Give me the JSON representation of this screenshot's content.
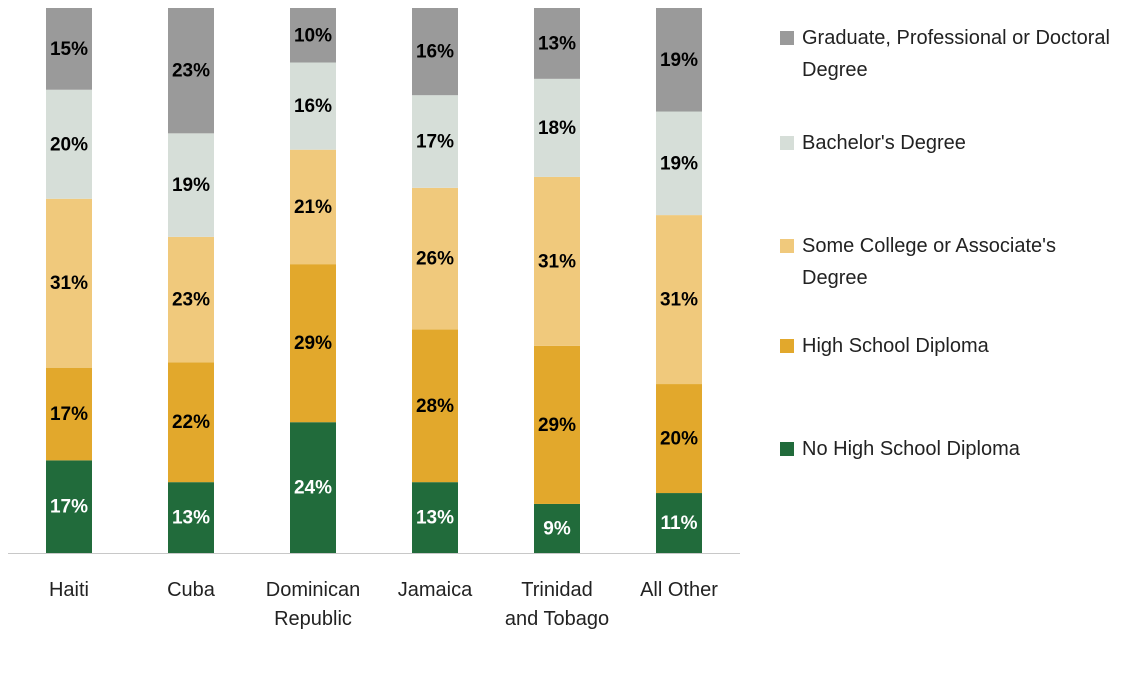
{
  "chart_data": {
    "type": "stacked_bar",
    "categories": [
      "Haiti",
      "Cuba",
      "Dominican Republic",
      "Jamaica",
      "Trinidad and Tobago",
      "All Other"
    ],
    "ylim": [
      0,
      100
    ],
    "series": [
      {
        "name": "No High School Diploma",
        "color": "#216b3b",
        "values": [
          17,
          13,
          24,
          13,
          9,
          11
        ],
        "value_labels": [
          "17%",
          "13%",
          "24%",
          "13%",
          "9%",
          "11%"
        ]
      },
      {
        "name": "High School Diploma",
        "color": "#e2a82c",
        "values": [
          17,
          22,
          29,
          28,
          29,
          20
        ],
        "value_labels": [
          "17%",
          "22%",
          "29%",
          "28%",
          "29%",
          "20%"
        ]
      },
      {
        "name": "Some College or Associate's Degree",
        "color": "#f0c97c",
        "values": [
          31,
          23,
          21,
          26,
          31,
          31
        ],
        "value_labels": [
          "31%",
          "23%",
          "21%",
          "26%",
          "31%",
          "31%"
        ]
      },
      {
        "name": "Bachelor's Degree",
        "color": "#d6ded8",
        "values": [
          20,
          19,
          16,
          17,
          18,
          19
        ],
        "value_labels": [
          "20%",
          "19%",
          "16%",
          "17%",
          "18%",
          "19%"
        ]
      },
      {
        "name": "Graduate, Professional or Doctoral Degree",
        "color": "#9a9a9a",
        "values": [
          15,
          23,
          10,
          16,
          13,
          19
        ],
        "value_labels": [
          "15%",
          "23%",
          "10%",
          "16%",
          "13%",
          "19%"
        ]
      }
    ],
    "legend": "right"
  }
}
